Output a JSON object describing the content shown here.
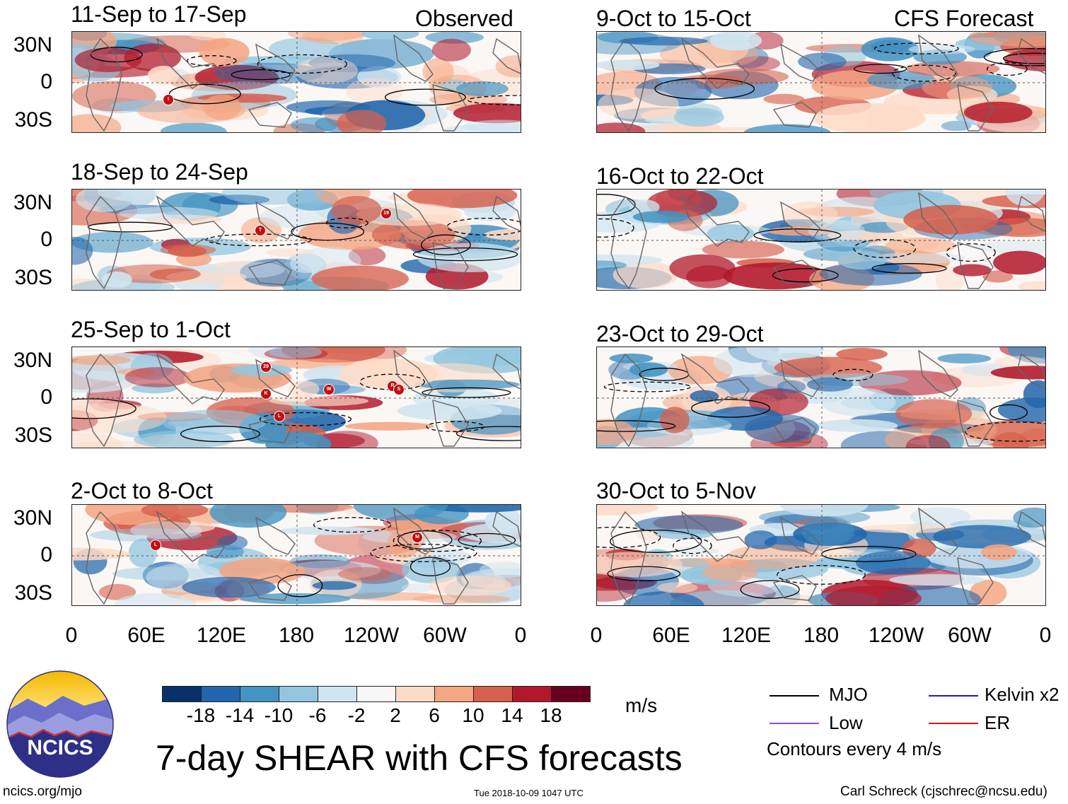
{
  "header": {
    "observed_label": "Observed",
    "forecast_label": "CFS Forecast"
  },
  "panels_left": [
    {
      "title": "11-Sep to 17-Sep",
      "storms": [
        "I"
      ]
    },
    {
      "title": "18-Sep to 24-Sep",
      "storms": [
        "T",
        "19"
      ]
    },
    {
      "title": "25-Sep to 1-Oct",
      "storms": [
        "29",
        "K",
        "W",
        "L",
        "R",
        "S"
      ]
    },
    {
      "title": "2-Oct to 8-Oct",
      "storms": [
        "L",
        "M"
      ]
    }
  ],
  "panels_right": [
    {
      "title": "9-Oct to 15-Oct"
    },
    {
      "title": "16-Oct to 22-Oct"
    },
    {
      "title": "23-Oct to 29-Oct"
    },
    {
      "title": "30-Oct to 5-Nov"
    }
  ],
  "y_labels": [
    "30N",
    "0",
    "30S"
  ],
  "x_labels": [
    "0",
    "60E",
    "120E",
    "180",
    "120W",
    "60W",
    "0"
  ],
  "colorbar": {
    "ticks": [
      "-18",
      "-14",
      "-10",
      "-6",
      "-2",
      "2",
      "6",
      "10",
      "14",
      "18"
    ],
    "colors": [
      "#08306b",
      "#2166ac",
      "#4393c3",
      "#92c5de",
      "#d1e5f0",
      "#f7f7f7",
      "#fddbc7",
      "#f4a582",
      "#d6604d",
      "#b2182b",
      "#67001f"
    ],
    "units": "m/s"
  },
  "legend": {
    "mjo": "MJO",
    "kelvin": "Kelvin x2",
    "low": "Low",
    "er": "ER",
    "contours": "Contours every 4 m/s",
    "colors": {
      "mjo": "#000000",
      "kelvin": "#1a1acc",
      "low": "#a040e0",
      "er": "#dd1111"
    }
  },
  "logo_text": "NCICS",
  "main_title": "7-day SHEAR with CFS forecasts",
  "footer": {
    "url": "ncics.org/mjo",
    "timestamp": "Tue 2018-10-09 1047 UTC",
    "credit": "Carl Schreck (cjschrec@ncsu.edu)"
  }
}
